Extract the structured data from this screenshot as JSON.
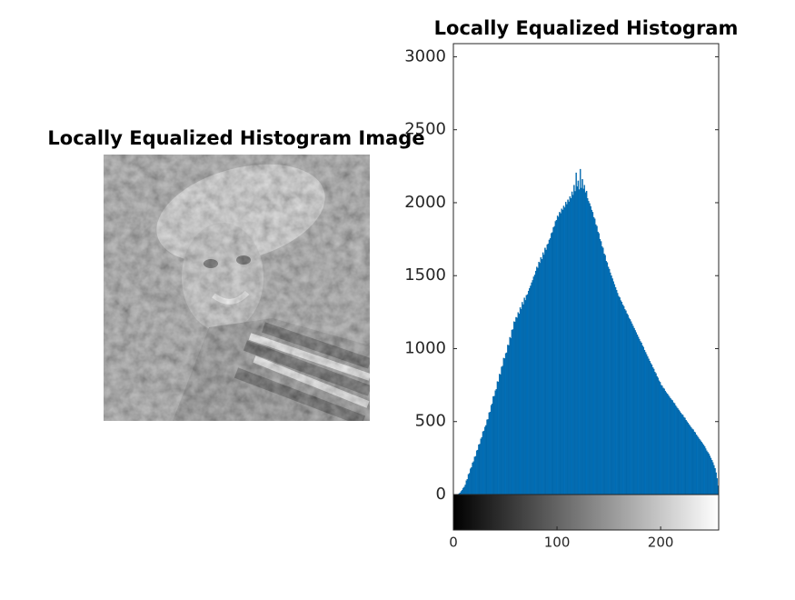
{
  "image_panel": {
    "title": "Locally Equalized Histogram Image"
  },
  "chart_data": {
    "type": "histogram",
    "title": "Locally Equalized Histogram",
    "color": "#0072bd",
    "xlim": [
      0,
      256
    ],
    "ylim": [
      0,
      3090
    ],
    "xticks": [
      0,
      100,
      200
    ],
    "yticks": [
      0,
      500,
      1000,
      1500,
      2000,
      2500,
      3000
    ],
    "bins": [
      0,
      1,
      2,
      3,
      4,
      5,
      6,
      7,
      8,
      9,
      10,
      11,
      12,
      13,
      14,
      15,
      16,
      17,
      18,
      19,
      20,
      21,
      22,
      23,
      24,
      25,
      26,
      27,
      28,
      29,
      30,
      31,
      32,
      33,
      34,
      35,
      36,
      37,
      38,
      39,
      40,
      41,
      42,
      43,
      44,
      45,
      46,
      47,
      48,
      49,
      50,
      51,
      52,
      53,
      54,
      55,
      56,
      57,
      58,
      59,
      60,
      61,
      62,
      63,
      64,
      65,
      66,
      67,
      68,
      69,
      70,
      71,
      72,
      73,
      74,
      75,
      76,
      77,
      78,
      79,
      80,
      81,
      82,
      83,
      84,
      85,
      86,
      87,
      88,
      89,
      90,
      91,
      92,
      93,
      94,
      95,
      96,
      97,
      98,
      99,
      100,
      101,
      102,
      103,
      104,
      105,
      106,
      107,
      108,
      109,
      110,
      111,
      112,
      113,
      114,
      115,
      116,
      117,
      118,
      119,
      120,
      121,
      122,
      123,
      124,
      125,
      126,
      127,
      128,
      129,
      130,
      131,
      132,
      133,
      134,
      135,
      136,
      137,
      138,
      139,
      140,
      141,
      142,
      143,
      144,
      145,
      146,
      147,
      148,
      149,
      150,
      151,
      152,
      153,
      154,
      155,
      156,
      157,
      158,
      159,
      160,
      161,
      162,
      163,
      164,
      165,
      166,
      167,
      168,
      169,
      170,
      171,
      172,
      173,
      174,
      175,
      176,
      177,
      178,
      179,
      180,
      181,
      182,
      183,
      184,
      185,
      186,
      187,
      188,
      189,
      190,
      191,
      192,
      193,
      194,
      195,
      196,
      197,
      198,
      199,
      200,
      201,
      202,
      203,
      204,
      205,
      206,
      207,
      208,
      209,
      210,
      211,
      212,
      213,
      214,
      215,
      216,
      217,
      218,
      219,
      220,
      221,
      222,
      223,
      224,
      225,
      226,
      227,
      228,
      229,
      230,
      231,
      232,
      233,
      234,
      235,
      236,
      237,
      238,
      239,
      240,
      241,
      242,
      243,
      244,
      245,
      246,
      247,
      248,
      249,
      250,
      251,
      252,
      253,
      254,
      255,
      256
    ],
    "values": [
      0,
      0,
      0,
      0,
      2,
      6,
      12,
      22,
      31,
      44,
      52,
      66,
      95,
      104,
      138,
      146,
      177,
      186,
      218,
      226,
      258,
      262,
      301,
      305,
      342,
      346,
      381,
      392,
      431,
      436,
      462,
      474,
      512,
      515,
      561,
      566,
      612,
      621,
      672,
      674,
      712,
      721,
      775,
      772,
      826,
      822,
      875,
      881,
      935,
      932,
      968,
      972,
      1025,
      1022,
      1078,
      1071,
      1128,
      1131,
      1185,
      1182,
      1215,
      1211,
      1248,
      1238,
      1282,
      1270,
      1318,
      1302,
      1348,
      1331,
      1365,
      1371,
      1395,
      1412,
      1430,
      1452,
      1468,
      1492,
      1505,
      1532,
      1560,
      1552,
      1594,
      1586,
      1625,
      1612,
      1658,
      1642,
      1690,
      1676,
      1712,
      1718,
      1745,
      1756,
      1790,
      1796,
      1830,
      1838,
      1872,
      1880,
      1910,
      1902,
      1935,
      1926,
      1958,
      1950,
      1978,
      1966,
      2004,
      1988,
      2020,
      2006,
      2042,
      2030,
      2075,
      2052,
      2120,
      2078,
      2205,
      2110,
      2150,
      2090,
      2230,
      2100,
      2160,
      2095,
      2120,
      2070,
      2080,
      2030,
      2010,
      1995,
      1975,
      1950,
      1935,
      1900,
      1890,
      1850,
      1840,
      1800,
      1790,
      1750,
      1735,
      1700,
      1690,
      1650,
      1640,
      1600,
      1590,
      1560,
      1545,
      1520,
      1500,
      1480,
      1460,
      1440,
      1420,
      1400,
      1380,
      1360,
      1350,
      1330,
      1320,
      1300,
      1290,
      1270,
      1260,
      1240,
      1230,
      1210,
      1200,
      1185,
      1170,
      1155,
      1140,
      1125,
      1110,
      1095,
      1080,
      1065,
      1050,
      1040,
      1020,
      1010,
      990,
      975,
      960,
      945,
      930,
      915,
      900,
      890,
      870,
      860,
      840,
      830,
      810,
      800,
      780,
      770,
      750,
      745,
      730,
      725,
      710,
      700,
      690,
      680,
      670,
      660,
      650,
      645,
      630,
      625,
      610,
      600,
      590,
      580,
      570,
      560,
      550,
      545,
      530,
      525,
      510,
      500,
      490,
      480,
      470,
      460,
      450,
      445,
      430,
      425,
      410,
      400,
      390,
      380,
      370,
      360,
      350,
      340,
      330,
      315,
      300,
      290,
      280,
      265,
      250,
      235,
      220,
      200,
      180,
      150,
      110,
      60
    ]
  }
}
